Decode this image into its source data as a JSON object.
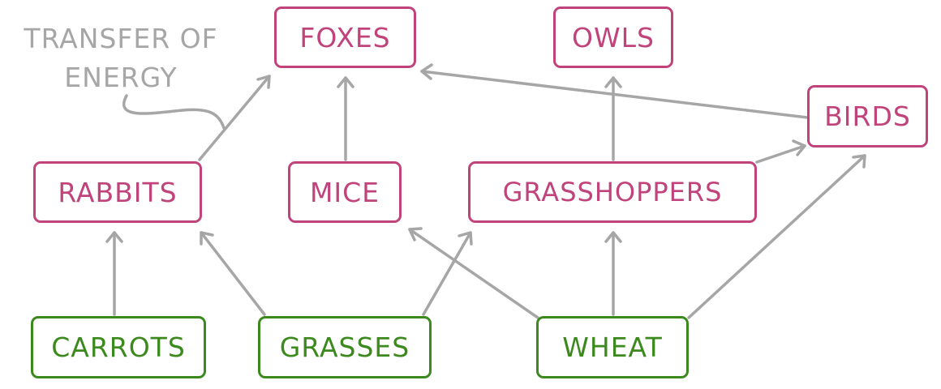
{
  "annotation": {
    "line1": "TRANSFER OF",
    "line2": "ENERGY"
  },
  "nodes": {
    "foxes": "FOXES",
    "owls": "OWLS",
    "birds": "BIRDS",
    "rabbits": "RABBITS",
    "mice": "MICE",
    "grasshoppers": "GRASSHOPPERS",
    "carrots": "CARROTS",
    "grasses": "GRASSES",
    "wheat": "WHEAT"
  },
  "colors": {
    "consumer": "#c0447b",
    "producer": "#3c8a1e",
    "arrow": "#a6a6a6"
  }
}
